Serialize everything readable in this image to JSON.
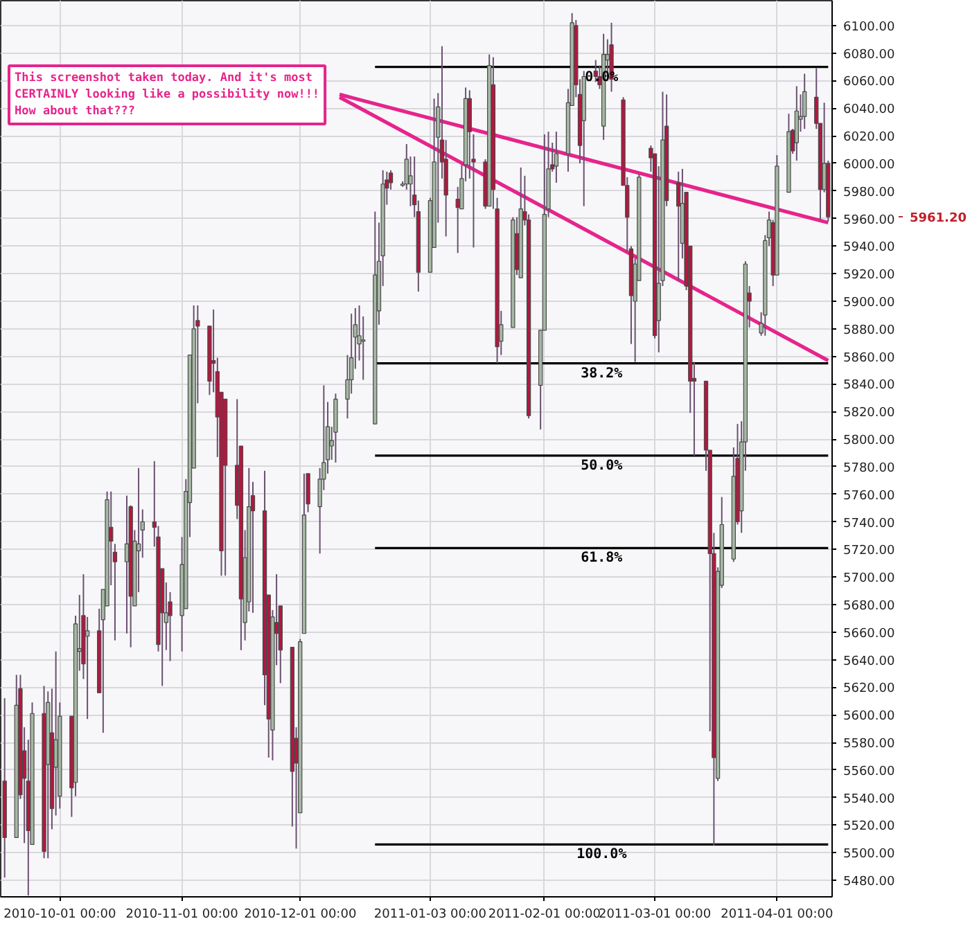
{
  "chart_data": {
    "type": "candlestick",
    "x": [
      "2010-09-17",
      "2010-09-20",
      "2010-09-21",
      "2010-09-22",
      "2010-09-23",
      "2010-09-24",
      "2010-09-27",
      "2010-09-28",
      "2010-09-29",
      "2010-09-30",
      "2010-10-01",
      "2010-10-04",
      "2010-10-05",
      "2010-10-06",
      "2010-10-07",
      "2010-10-08",
      "2010-10-11",
      "2010-10-12",
      "2010-10-13",
      "2010-10-14",
      "2010-10-15",
      "2010-10-18",
      "2010-10-19",
      "2010-10-20",
      "2010-10-21",
      "2010-10-22",
      "2010-10-25",
      "2010-10-26",
      "2010-10-27",
      "2010-10-28",
      "2010-10-29",
      "2010-11-01",
      "2010-11-02",
      "2010-11-03",
      "2010-11-04",
      "2010-11-05",
      "2010-11-08",
      "2010-11-09",
      "2010-11-10",
      "2010-11-11",
      "2010-11-12",
      "2010-11-15",
      "2010-11-16",
      "2010-11-17",
      "2010-11-18",
      "2010-11-19",
      "2010-11-22",
      "2010-11-23",
      "2010-11-24",
      "2010-11-25",
      "2010-11-26",
      "2010-11-29",
      "2010-11-30",
      "2010-12-01",
      "2010-12-02",
      "2010-12-03",
      "2010-12-06",
      "2010-12-07",
      "2010-12-08",
      "2010-12-09",
      "2010-12-10",
      "2010-12-13",
      "2010-12-14",
      "2010-12-15",
      "2010-12-16",
      "2010-12-17",
      "2010-12-20",
      "2010-12-21",
      "2010-12-22",
      "2010-12-23",
      "2010-12-24",
      "2010-12-27",
      "2010-12-28",
      "2010-12-29",
      "2010-12-30",
      "2010-12-31",
      "2011-01-03",
      "2011-01-04",
      "2011-01-05",
      "2011-01-06",
      "2011-01-07",
      "2011-01-10",
      "2011-01-11",
      "2011-01-12",
      "2011-01-13",
      "2011-01-14",
      "2011-01-17",
      "2011-01-18",
      "2011-01-19",
      "2011-01-20",
      "2011-01-21",
      "2011-01-24",
      "2011-01-25",
      "2011-01-26",
      "2011-01-27",
      "2011-01-28",
      "2011-01-31",
      "2011-02-01",
      "2011-02-02",
      "2011-02-03",
      "2011-02-04",
      "2011-02-07",
      "2011-02-08",
      "2011-02-09",
      "2011-02-10",
      "2011-02-11",
      "2011-02-14",
      "2011-02-15",
      "2011-02-16",
      "2011-02-17",
      "2011-02-18",
      "2011-02-21",
      "2011-02-22",
      "2011-02-23",
      "2011-02-24",
      "2011-02-25",
      "2011-02-28",
      "2011-03-01",
      "2011-03-02",
      "2011-03-03",
      "2011-03-04",
      "2011-03-07",
      "2011-03-08",
      "2011-03-09",
      "2011-03-10",
      "2011-03-11",
      "2011-03-14",
      "2011-03-15",
      "2011-03-16",
      "2011-03-17",
      "2011-03-18",
      "2011-03-21",
      "2011-03-22",
      "2011-03-23",
      "2011-03-24",
      "2011-03-25",
      "2011-03-28",
      "2011-03-29",
      "2011-03-30",
      "2011-03-31",
      "2011-04-01",
      "2011-04-04",
      "2011-04-05",
      "2011-04-06",
      "2011-04-07",
      "2011-04-08",
      "2011-04-11",
      "2011-04-12",
      "2011-04-13",
      "2011-04-14"
    ],
    "ohlc": [
      [
        5552,
        5612,
        5482,
        5511
      ],
      [
        5511,
        5629,
        5511,
        5607
      ],
      [
        5619,
        5629,
        5539,
        5542
      ],
      [
        5574,
        5591,
        5507,
        5554
      ],
      [
        5552,
        5582,
        5469,
        5516
      ],
      [
        5506,
        5609,
        5506,
        5601
      ],
      [
        5601,
        5621,
        5496,
        5501
      ],
      [
        5564,
        5617,
        5496,
        5609
      ],
      [
        5587,
        5619,
        5517,
        5532
      ],
      [
        5562,
        5646,
        5527,
        5582
      ],
      [
        5541,
        5609,
        5532,
        5599
      ],
      [
        5599,
        5599,
        5526,
        5547
      ],
      [
        5551,
        5672,
        5541,
        5666
      ],
      [
        5646,
        5687,
        5632,
        5648
      ],
      [
        5672,
        5702,
        5626,
        5637
      ],
      [
        5657,
        5671,
        5597,
        5661
      ],
      [
        5661,
        5677,
        5616,
        5616
      ],
      [
        5669,
        5691,
        5587,
        5691
      ],
      [
        5679,
        5762,
        5679,
        5756
      ],
      [
        5736,
        5762,
        5694,
        5726
      ],
      [
        5718,
        5724,
        5654,
        5711
      ],
      [
        5711,
        5759,
        5659,
        5724
      ],
      [
        5751,
        5752,
        5649,
        5686
      ],
      [
        5679,
        5734,
        5679,
        5726
      ],
      [
        5719,
        5779,
        5689,
        5724
      ],
      [
        5734,
        5749,
        5714,
        5740
      ],
      [
        5740,
        5784,
        5722,
        5736
      ],
      [
        5729,
        5737,
        5646,
        5651
      ],
      [
        5706,
        5706,
        5621,
        5674
      ],
      [
        5667,
        5696,
        5647,
        5674
      ],
      [
        5682,
        5689,
        5639,
        5672
      ],
      [
        5672,
        5729,
        5646,
        5709
      ],
      [
        5677,
        5771,
        5677,
        5762
      ],
      [
        5754,
        5861,
        5729,
        5861
      ],
      [
        5779,
        5897,
        5779,
        5880
      ],
      [
        5886,
        5897,
        5826,
        5882
      ],
      [
        5882,
        5882,
        5832,
        5842
      ],
      [
        5857,
        5894,
        5834,
        5855
      ],
      [
        5849,
        5859,
        5787,
        5816
      ],
      [
        5834,
        5834,
        5701,
        5719
      ],
      [
        5829,
        5829,
        5701,
        5781
      ],
      [
        5781,
        5829,
        5742,
        5752
      ],
      [
        5795,
        5795,
        5647,
        5684
      ],
      [
        5667,
        5734,
        5654,
        5714
      ],
      [
        5682,
        5779,
        5675,
        5751
      ],
      [
        5759,
        5769,
        5674,
        5748
      ],
      [
        5748,
        5777,
        5607,
        5629
      ],
      [
        5687,
        5687,
        5569,
        5597
      ],
      [
        5589,
        5676,
        5567,
        5671
      ],
      [
        5667,
        5702,
        5636,
        5659
      ],
      [
        5679,
        5679,
        5623,
        5647
      ],
      [
        5649,
        5649,
        5519,
        5559
      ],
      [
        5583,
        5591,
        5503,
        5565
      ],
      [
        5529,
        5655,
        5529,
        5653
      ],
      [
        5659,
        5775,
        5659,
        5745
      ],
      [
        5775,
        5775,
        5747,
        5753
      ],
      [
        5751,
        5779,
        5717,
        5771
      ],
      [
        5771,
        5839,
        5763,
        5783
      ],
      [
        5785,
        5827,
        5775,
        5809
      ],
      [
        5795,
        5809,
        5785,
        5799
      ],
      [
        5805,
        5833,
        5783,
        5829
      ],
      [
        5829,
        5861,
        5815,
        5843
      ],
      [
        5843,
        5891,
        5833,
        5859
      ],
      [
        5874,
        5895,
        5851,
        5883
      ],
      [
        5869,
        5897,
        5857,
        5875
      ],
      [
        5871,
        5889,
        5843,
        5872
      ],
      [
        5811,
        5965,
        5811,
        5919
      ],
      [
        5893,
        5957,
        5883,
        5929
      ],
      [
        5933,
        5995,
        5911,
        5985
      ],
      [
        5988,
        5994,
        5970,
        5982
      ],
      [
        5993,
        5995,
        5981,
        5986
      ],
      [
        5984,
        5987,
        5983,
        5985
      ],
      [
        5985,
        6014,
        5981,
        6003
      ],
      [
        5985,
        6005,
        5969,
        5991
      ],
      [
        5977,
        6005,
        5961,
        5970
      ],
      [
        5965,
        5973,
        5907,
        5921
      ],
      [
        5921,
        5975,
        5921,
        5973
      ],
      [
        5939,
        6047,
        5939,
        6001
      ],
      [
        6019,
        6051,
        5957,
        6041
      ],
      [
        6017,
        6085,
        5989,
        6001
      ],
      [
        6003,
        6017,
        5947,
        5977
      ],
      [
        5974,
        5983,
        5935,
        5968
      ],
      [
        5967,
        5999,
        5967,
        5989
      ],
      [
        5999,
        6055,
        5987,
        6047
      ],
      [
        6047,
        6053,
        5989,
        6023
      ],
      [
        6003,
        6021,
        5939,
        6001
      ],
      [
        6001,
        6003,
        5967,
        5969
      ],
      [
        5969,
        6079,
        5969,
        6071
      ],
      [
        6057,
        6077,
        5967,
        5981
      ],
      [
        5967,
        5975,
        5855,
        5867
      ],
      [
        5871,
        5893,
        5861,
        5883
      ],
      [
        5881,
        5961,
        5881,
        5959
      ],
      [
        5949,
        5961,
        5919,
        5923
      ],
      [
        5917,
        5997,
        5917,
        5967
      ],
      [
        5965,
        5991,
        5955,
        5959
      ],
      [
        5959,
        5963,
        5815,
        5817
      ],
      [
        5839,
        5879,
        5807,
        5879
      ],
      [
        5879,
        6021,
        5879,
        5963
      ],
      [
        5967,
        6023,
        5961,
        5996
      ],
      [
        5999,
        6015,
        5994,
        5996
      ],
      [
        5998,
        6023,
        5986,
        6007
      ],
      [
        6007,
        6054,
        5994,
        6044
      ],
      [
        6042,
        6109,
        6042,
        6102
      ],
      [
        6100,
        6104,
        6048,
        6057
      ],
      [
        6050,
        6061,
        6000,
        6013
      ],
      [
        6031,
        6067,
        5969,
        6063
      ],
      [
        6067,
        6075,
        6059,
        6063
      ],
      [
        6063,
        6071,
        6054,
        6057
      ],
      [
        6027,
        6094,
        6017,
        6079
      ],
      [
        6075,
        6090,
        6063,
        6079
      ],
      [
        6086,
        6102,
        6052,
        6061
      ],
      [
        6046,
        6048,
        5984,
        5984
      ],
      [
        5984,
        5990,
        5936,
        5961
      ],
      [
        5938,
        5940,
        5869,
        5904
      ],
      [
        5900,
        5931,
        5856,
        5927
      ],
      [
        5915,
        5992,
        5915,
        5990
      ],
      [
        6011,
        6013,
        5994,
        6004
      ],
      [
        6007,
        6007,
        5873,
        5875
      ],
      [
        5886,
        5998,
        5863,
        5913
      ],
      [
        5915,
        6052,
        5911,
        6017
      ],
      [
        6027,
        6050,
        5969,
        5973
      ],
      [
        5986,
        5994,
        5915,
        5969
      ],
      [
        5942,
        5996,
        5931,
        5971
      ],
      [
        5979,
        5979,
        5908,
        5911
      ],
      [
        5940,
        5940,
        5819,
        5842
      ],
      [
        5844,
        5856,
        5788,
        5842
      ],
      [
        5842,
        5842,
        5777,
        5792
      ],
      [
        5792,
        5792,
        5588,
        5717
      ],
      [
        5717,
        5732,
        5505,
        5569
      ],
      [
        5554,
        5707,
        5552,
        5704
      ],
      [
        5694,
        5758,
        5692,
        5738
      ],
      [
        5713,
        5794,
        5711,
        5773
      ],
      [
        5786,
        5811,
        5738,
        5740
      ],
      [
        5748,
        5813,
        5732,
        5798
      ],
      [
        5798,
        5929,
        5777,
        5927
      ],
      [
        5906,
        5911,
        5881,
        5900
      ],
      [
        5877,
        5892,
        5875,
        5884
      ],
      [
        5890,
        5948,
        5875,
        5944
      ],
      [
        5946,
        5965,
        5940,
        5959
      ],
      [
        5957,
        5959,
        5911,
        5919
      ],
      [
        5919,
        6006,
        5919,
        5998
      ],
      [
        5979,
        6036,
        5979,
        6023
      ],
      [
        6024,
        6025,
        6007,
        6009
      ],
      [
        6015,
        6056,
        6002,
        6038
      ],
      [
        6032,
        6050,
        6023,
        6034
      ],
      [
        6034,
        6065,
        6025,
        6052
      ],
      [
        6048,
        6069,
        6025,
        6029
      ],
      [
        6029,
        6029,
        5959,
        5981
      ],
      [
        5981,
        6044,
        5979,
        6000
      ],
      [
        6000,
        6002,
        5958,
        5961.2
      ]
    ],
    "colors": [
      "#b3173f",
      "#a6b8a4",
      "#b3173f",
      "#b3173f",
      "#b3173f",
      "#a6b8a4",
      "#b3173f",
      "#a6b8a4",
      "#b3173f",
      "#a6b8a4",
      "#a6b8a4",
      "#b3173f",
      "#a6b8a4",
      "#a6b8a4",
      "#b3173f",
      "#a6b8a4",
      "#b3173f",
      "#a6b8a4",
      "#a6b8a4",
      "#b3173f",
      "#b3173f",
      "#a6b8a4",
      "#b3173f",
      "#a6b8a4",
      "#a6b8a4",
      "#a6b8a4",
      "#b3173f",
      "#b3173f",
      "#b3173f",
      "#a6b8a4",
      "#b3173f",
      "#a6b8a4",
      "#a6b8a4",
      "#a6b8a4",
      "#a6b8a4",
      "#b3173f",
      "#b3173f",
      "#b3173f",
      "#b3173f",
      "#b3173f",
      "#b3173f",
      "#b3173f",
      "#b3173f",
      "#a6b8a4",
      "#a6b8a4",
      "#b3173f",
      "#b3173f",
      "#b3173f",
      "#a6b8a4",
      "#b3173f",
      "#b3173f",
      "#b3173f",
      "#b3173f",
      "#a6b8a4",
      "#a6b8a4",
      "#b3173f",
      "#a6b8a4",
      "#a6b8a4",
      "#a6b8a4",
      "#a6b8a4",
      "#a6b8a4",
      "#a6b8a4",
      "#a6b8a4",
      "#a6b8a4",
      "#a6b8a4",
      "#a6b8a4",
      "#a6b8a4",
      "#a6b8a4",
      "#a6b8a4",
      "#b3173f",
      "#b3173f",
      "#a6b8a4",
      "#a6b8a4",
      "#a6b8a4",
      "#b3173f",
      "#b3173f",
      "#a6b8a4",
      "#a6b8a4",
      "#a6b8a4",
      "#b3173f",
      "#b3173f",
      "#b3173f",
      "#a6b8a4",
      "#a6b8a4",
      "#b3173f",
      "#b3173f",
      "#b3173f",
      "#a6b8a4",
      "#b3173f",
      "#b3173f",
      "#a6b8a4",
      "#a6b8a4",
      "#b3173f",
      "#a6b8a4",
      "#b3173f",
      "#b3173f",
      "#a6b8a4",
      "#a6b8a4",
      "#a6b8a4",
      "#b3173f",
      "#a6b8a4",
      "#a6b8a4",
      "#a6b8a4",
      "#b3173f",
      "#b3173f",
      "#a6b8a4",
      "#b3173f",
      "#b3173f",
      "#a6b8a4",
      "#a6b8a4",
      "#b3173f",
      "#b3173f",
      "#b3173f",
      "#b3173f",
      "#a6b8a4",
      "#a6b8a4",
      "#b3173f",
      "#b3173f",
      "#a6b8a4",
      "#a6b8a4",
      "#b3173f",
      "#b3173f",
      "#a6b8a4",
      "#b3173f",
      "#b3173f",
      "#b3173f",
      "#b3173f",
      "#b3173f",
      "#b3173f",
      "#a6b8a4",
      "#a6b8a4",
      "#a6b8a4",
      "#b3173f",
      "#a6b8a4",
      "#a6b8a4",
      "#b3173f",
      "#a6b8a4",
      "#a6b8a4",
      "#a6b8a4",
      "#b3173f",
      "#a6b8a4",
      "#a6b8a4",
      "#b3173f",
      "#a6b8a4",
      "#a6b8a4",
      "#a6b8a4",
      "#b3173f",
      "#b3173f",
      "#a6b8a4",
      "#b3173f"
    ],
    "series": [
      {
        "type": "line",
        "name": "0.0%",
        "color": "#000000",
        "x": [
          "2010-12-20",
          "2011-04-14"
        ],
        "values": [
          6070,
          6070
        ]
      },
      {
        "type": "line",
        "name": "38.2%",
        "color": "#000000",
        "x": [
          "2010-12-20",
          "2011-04-14"
        ],
        "values": [
          5855,
          5855
        ]
      },
      {
        "type": "line",
        "name": "50.0%",
        "color": "#000000",
        "x": [
          "2010-12-20",
          "2011-04-14"
        ],
        "values": [
          5788,
          5788
        ]
      },
      {
        "type": "line",
        "name": "61.8%",
        "color": "#000000",
        "x": [
          "2010-12-20",
          "2011-04-14"
        ],
        "values": [
          5721,
          5721
        ]
      },
      {
        "type": "line",
        "name": "100.0%",
        "color": "#000000",
        "x": [
          "2010-12-20",
          "2011-04-14"
        ],
        "values": [
          5506,
          5506
        ]
      },
      {
        "type": "line",
        "color": "#e6248c",
        "x": [
          "2010-12-11",
          "2011-04-14"
        ],
        "values": [
          6050,
          5957
        ]
      },
      {
        "type": "line",
        "color": "#e6248c",
        "x": [
          "2010-12-11",
          "2011-04-14"
        ],
        "values": [
          6048,
          5857
        ]
      }
    ],
    "annotations": [
      "This screenshot taken today.  And it's most\nCERTAINLY looking like a possibility now!!!\nHow about that???",
      "5961.20"
    ],
    "xlim": [
      "2010-09-16",
      "2011-04-15"
    ],
    "xticks": [
      {
        "value": "2010-10-01",
        "label": "2010-10-01 00:00"
      },
      {
        "value": "2010-11-01",
        "label": "2010-11-01 00:00"
      },
      {
        "value": "2010-12-01",
        "label": "2010-12-01 00:00"
      },
      {
        "value": "2011-01-03",
        "label": "2011-01-03 00:00"
      },
      {
        "value": "2011-02-01",
        "label": "2011-02-01 00:00"
      },
      {
        "value": "2011-03-01",
        "label": "2011-03-01 00:00"
      },
      {
        "value": "2011-04-01",
        "label": "2011-04-01 00:00"
      }
    ],
    "ylim": [
      5468,
      6118
    ],
    "yticks": [
      {
        "value": 5480,
        "label": "5480.00"
      },
      {
        "value": 5500,
        "label": "5500.00"
      },
      {
        "value": 5520,
        "label": "5520.00"
      },
      {
        "value": 5540,
        "label": "5540.00"
      },
      {
        "value": 5560,
        "label": "5560.00"
      },
      {
        "value": 5580,
        "label": "5580.00"
      },
      {
        "value": 5600,
        "label": "5600.00"
      },
      {
        "value": 5620,
        "label": "5620.00"
      },
      {
        "value": 5640,
        "label": "5640.00"
      },
      {
        "value": 5660,
        "label": "5660.00"
      },
      {
        "value": 5680,
        "label": "5680.00"
      },
      {
        "value": 5700,
        "label": "5700.00"
      },
      {
        "value": 5720,
        "label": "5720.00"
      },
      {
        "value": 5740,
        "label": "5740.00"
      },
      {
        "value": 5760,
        "label": "5760.00"
      },
      {
        "value": 5780,
        "label": "5780.00"
      },
      {
        "value": 5800,
        "label": "5800.00"
      },
      {
        "value": 5820,
        "label": "5820.00"
      },
      {
        "value": 5840,
        "label": "5840.00"
      },
      {
        "value": 5860,
        "label": "5860.00"
      },
      {
        "value": 5880,
        "label": "5880.00"
      },
      {
        "value": 5900,
        "label": "5900.00"
      },
      {
        "value": 5920,
        "label": "5920.00"
      },
      {
        "value": 5940,
        "label": "5940.00"
      },
      {
        "value": 5960,
        "label": "5960.00"
      },
      {
        "value": 5980,
        "label": "5980.00"
      },
      {
        "value": 6000,
        "label": "6000.00"
      },
      {
        "value": 6020,
        "label": "6020.00"
      },
      {
        "value": 6040,
        "label": "6040.00"
      },
      {
        "value": 6060,
        "label": "6060.00"
      },
      {
        "value": 6080,
        "label": "6080.00"
      },
      {
        "value": 6100,
        "label": "6100.00"
      }
    ],
    "grid": true
  }
}
